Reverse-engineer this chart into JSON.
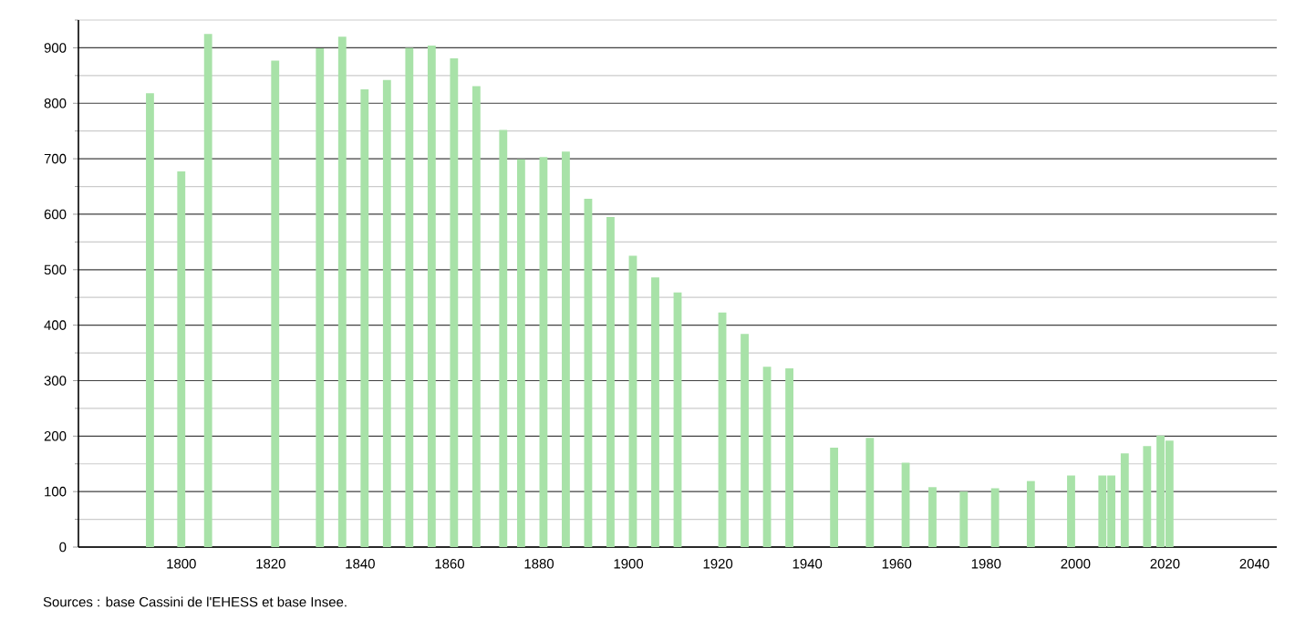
{
  "chart_data": {
    "type": "bar",
    "x": [
      1793,
      1800,
      1806,
      1821,
      1831,
      1836,
      1841,
      1846,
      1851,
      1856,
      1861,
      1866,
      1872,
      1876,
      1881,
      1886,
      1891,
      1896,
      1901,
      1906,
      1911,
      1921,
      1926,
      1931,
      1936,
      1946,
      1954,
      1962,
      1968,
      1975,
      1982,
      1990,
      1999,
      2006,
      2008,
      2011,
      2016,
      2019,
      2021
    ],
    "values": [
      818,
      677,
      925,
      877,
      899,
      920,
      825,
      842,
      900,
      904,
      881,
      831,
      752,
      699,
      703,
      713,
      628,
      595,
      525,
      486,
      459,
      423,
      384,
      325,
      322,
      179,
      197,
      152,
      108,
      100,
      106,
      119,
      129,
      129,
      129,
      169,
      182,
      201,
      192
    ],
    "color": "#a8e2a8",
    "xlim": [
      1777,
      2045
    ],
    "xticks": [
      1800,
      1820,
      1840,
      1860,
      1880,
      1900,
      1920,
      1940,
      1960,
      1980,
      2000,
      2020,
      2040
    ],
    "ylim": [
      0,
      950
    ],
    "yticks": [
      0,
      {
        "value": 50,
        "label": null
      },
      100,
      {
        "value": 150,
        "label": null
      },
      200,
      {
        "value": 250,
        "label": null
      },
      300,
      {
        "value": 350,
        "label": null
      },
      400,
      {
        "value": 450,
        "label": null
      },
      500,
      {
        "value": 550,
        "label": null
      },
      600,
      {
        "value": 650,
        "label": null
      },
      700,
      {
        "value": 750,
        "label": null
      },
      800,
      {
        "value": 850,
        "label": null
      },
      900,
      {
        "value": 950,
        "label": null
      }
    ],
    "grid": "y",
    "annotations": [
      "Sources : base Cassini de l'EHESS et base Insee."
    ]
  }
}
